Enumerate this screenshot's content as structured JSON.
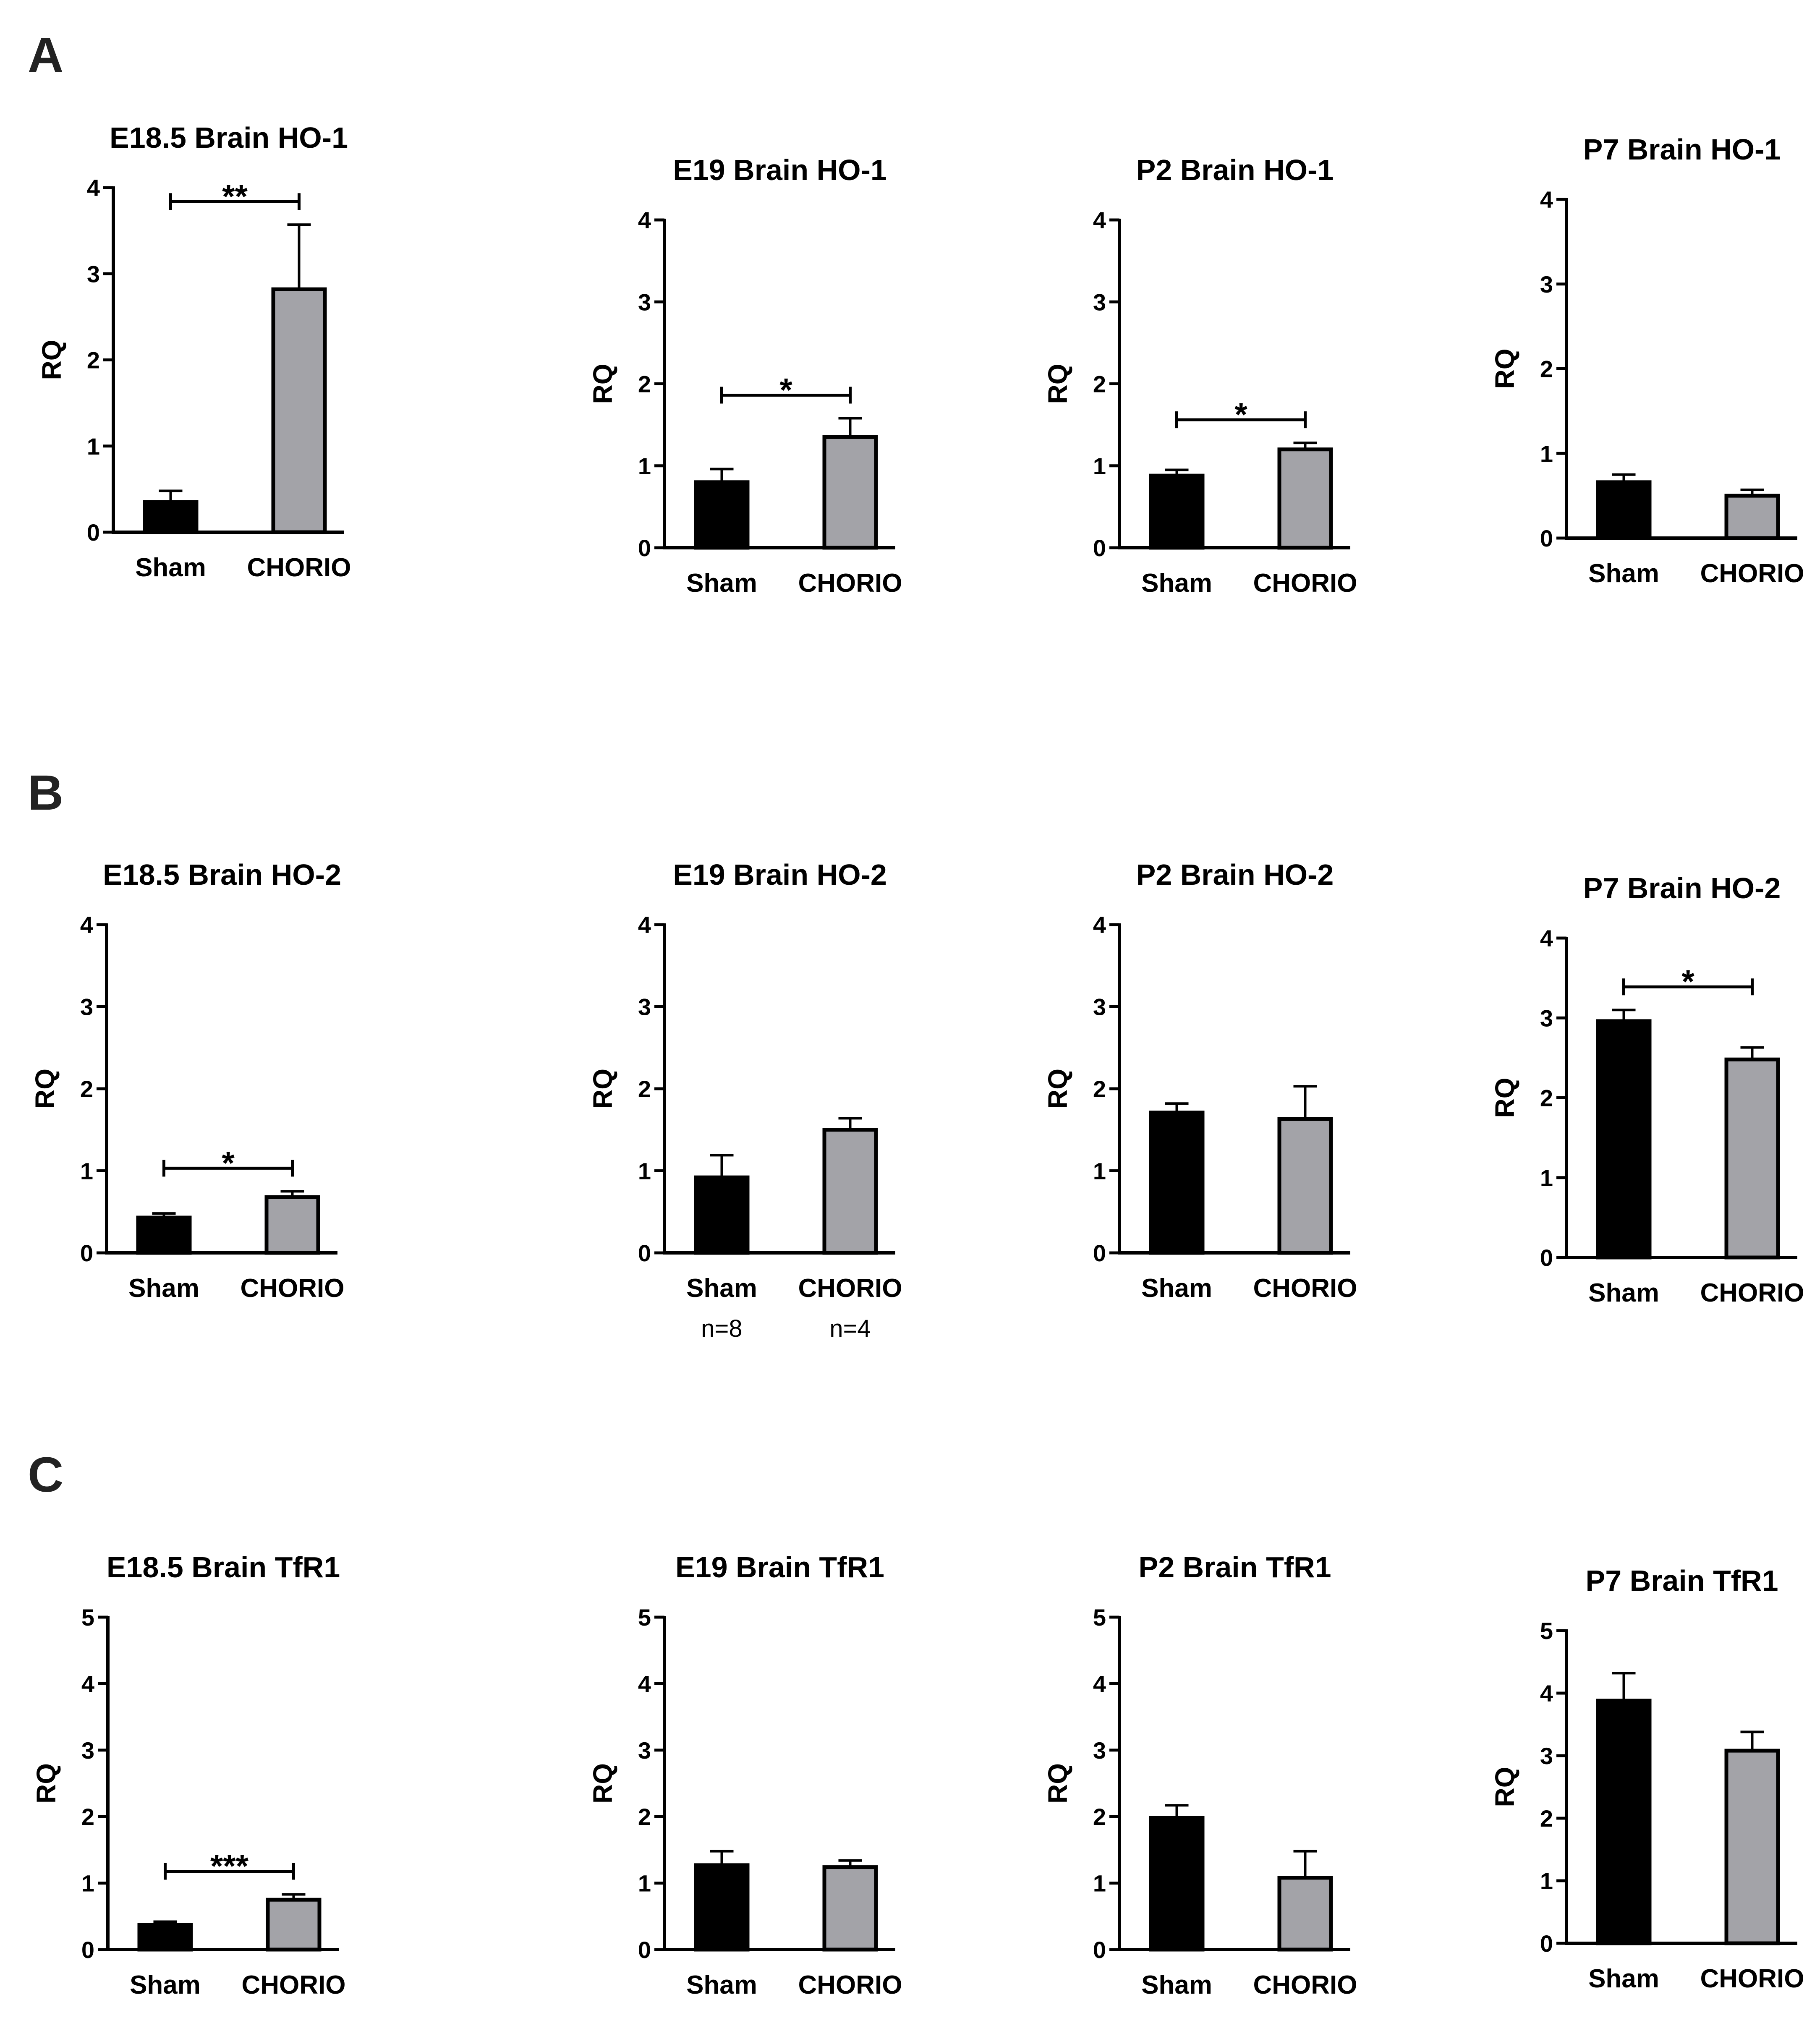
{
  "figure": {
    "panels": [
      {
        "letter": "A"
      },
      {
        "letter": "B"
      },
      {
        "letter": "C"
      }
    ]
  },
  "colors": {
    "sham": "#000000",
    "chorio": "#a3a3a8",
    "axis": "#000000",
    "text": "#000000"
  },
  "chart_data": [
    {
      "type": "bar",
      "panel": "A",
      "title": "E18.5 Brain HO-1",
      "ylabel": "RQ",
      "ylim": [
        0,
        4
      ],
      "yticks": [
        0,
        1,
        2,
        3,
        4
      ],
      "categories": [
        "Sham",
        "CHORIO"
      ],
      "values": [
        0.35,
        2.82
      ],
      "errors": [
        0.13,
        0.75
      ],
      "significance": "**"
    },
    {
      "type": "bar",
      "panel": "A",
      "title": "E19 Brain HO-1",
      "ylabel": "RQ",
      "ylim": [
        0,
        4
      ],
      "yticks": [
        0,
        1,
        2,
        3,
        4
      ],
      "categories": [
        "Sham",
        "CHORIO"
      ],
      "values": [
        0.8,
        1.35
      ],
      "errors": [
        0.16,
        0.23
      ],
      "significance": "*"
    },
    {
      "type": "bar",
      "panel": "A",
      "title": "P2 Brain HO-1",
      "ylabel": "RQ",
      "ylim": [
        0,
        4
      ],
      "yticks": [
        0,
        1,
        2,
        3,
        4
      ],
      "categories": [
        "Sham",
        "CHORIO"
      ],
      "values": [
        0.88,
        1.2
      ],
      "errors": [
        0.07,
        0.08
      ],
      "significance": "*"
    },
    {
      "type": "bar",
      "panel": "A",
      "title": "P7 Brain HO-1",
      "ylabel": "RQ",
      "ylim": [
        0,
        4
      ],
      "yticks": [
        0,
        1,
        2,
        3,
        4
      ],
      "categories": [
        "Sham",
        "CHORIO"
      ],
      "values": [
        0.66,
        0.5
      ],
      "errors": [
        0.09,
        0.07
      ],
      "significance": ""
    },
    {
      "type": "bar",
      "panel": "B",
      "title": "E18.5 Brain HO-2",
      "ylabel": "RQ",
      "ylim": [
        0,
        4
      ],
      "yticks": [
        0,
        1,
        2,
        3,
        4
      ],
      "categories": [
        "Sham",
        "CHORIO"
      ],
      "values": [
        0.43,
        0.68
      ],
      "errors": [
        0.05,
        0.07
      ],
      "significance": "*"
    },
    {
      "type": "bar",
      "panel": "B",
      "title": "E19 Brain HO-2",
      "ylabel": "RQ",
      "ylim": [
        0,
        4
      ],
      "yticks": [
        0,
        1,
        2,
        3,
        4
      ],
      "categories": [
        "Sham",
        "CHORIO"
      ],
      "values": [
        0.92,
        1.5
      ],
      "errors": [
        0.27,
        0.14
      ],
      "significance": "",
      "notes": [
        "n=8",
        "n=4"
      ]
    },
    {
      "type": "bar",
      "panel": "B",
      "title": "P2 Brain HO-2",
      "ylabel": "RQ",
      "ylim": [
        0,
        4
      ],
      "yticks": [
        0,
        1,
        2,
        3,
        4
      ],
      "categories": [
        "Sham",
        "CHORIO"
      ],
      "values": [
        1.71,
        1.63
      ],
      "errors": [
        0.11,
        0.4
      ],
      "significance": ""
    },
    {
      "type": "bar",
      "panel": "B",
      "title": "P7 Brain HO-2",
      "ylabel": "RQ",
      "ylim": [
        0,
        4
      ],
      "yticks": [
        0,
        1,
        2,
        3,
        4
      ],
      "categories": [
        "Sham",
        "CHORIO"
      ],
      "values": [
        2.96,
        2.48
      ],
      "errors": [
        0.14,
        0.15
      ],
      "significance": "*"
    },
    {
      "type": "bar",
      "panel": "C",
      "title": "E18.5 Brain TfR1",
      "ylabel": "RQ",
      "ylim": [
        0,
        5
      ],
      "yticks": [
        0,
        1,
        2,
        3,
        4,
        5
      ],
      "categories": [
        "Sham",
        "CHORIO"
      ],
      "values": [
        0.37,
        0.75
      ],
      "errors": [
        0.05,
        0.08
      ],
      "significance": "***"
    },
    {
      "type": "bar",
      "panel": "C",
      "title": "E19 Brain TfR1",
      "ylabel": "RQ",
      "ylim": [
        0,
        5
      ],
      "yticks": [
        0,
        1,
        2,
        3,
        4,
        5
      ],
      "categories": [
        "Sham",
        "CHORIO"
      ],
      "values": [
        1.27,
        1.24
      ],
      "errors": [
        0.21,
        0.1
      ],
      "significance": ""
    },
    {
      "type": "bar",
      "panel": "C",
      "title": "P2 Brain TfR1",
      "ylabel": "RQ",
      "ylim": [
        0,
        5
      ],
      "yticks": [
        0,
        1,
        2,
        3,
        4,
        5
      ],
      "categories": [
        "Sham",
        "CHORIO"
      ],
      "values": [
        1.98,
        1.08
      ],
      "errors": [
        0.19,
        0.4
      ],
      "significance": ""
    },
    {
      "type": "bar",
      "panel": "C",
      "title": "P7 Brain TfR1",
      "ylabel": "RQ",
      "ylim": [
        0,
        5
      ],
      "yticks": [
        0,
        1,
        2,
        3,
        4,
        5
      ],
      "categories": [
        "Sham",
        "CHORIO"
      ],
      "values": [
        3.88,
        3.08
      ],
      "errors": [
        0.44,
        0.3
      ],
      "significance": ""
    }
  ]
}
